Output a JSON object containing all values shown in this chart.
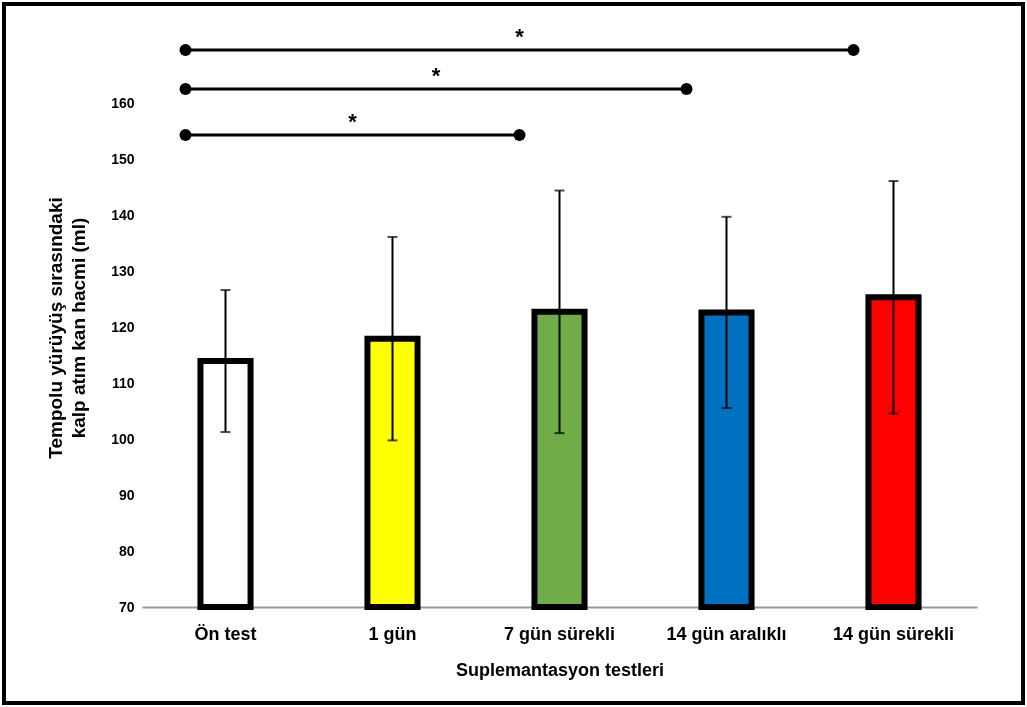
{
  "chart_data": {
    "type": "bar",
    "xlabel": "Suplemantasyon testleri",
    "ylabel": "Tempolu yürüyüş sırasındaki\nkalp atım kan hacmi (ml)",
    "categories": [
      "Ön test",
      "1 gün",
      "7 gün sürekli",
      "14 gün aralıklı",
      "14 gün sürekli"
    ],
    "values": [
      114,
      118,
      122.8,
      122.7,
      125.4
    ],
    "errors": [
      12.7,
      18.2,
      21.7,
      17.1,
      20.8
    ],
    "colors": [
      "#ffffff",
      "#ffff00",
      "#70ad47",
      "#0070c0",
      "#ff0000"
    ],
    "ylim": [
      70,
      170
    ],
    "yticks": [
      70,
      80,
      90,
      100,
      110,
      120,
      130,
      140,
      150,
      160
    ],
    "annotations": [
      "*",
      "*",
      "*"
    ]
  }
}
